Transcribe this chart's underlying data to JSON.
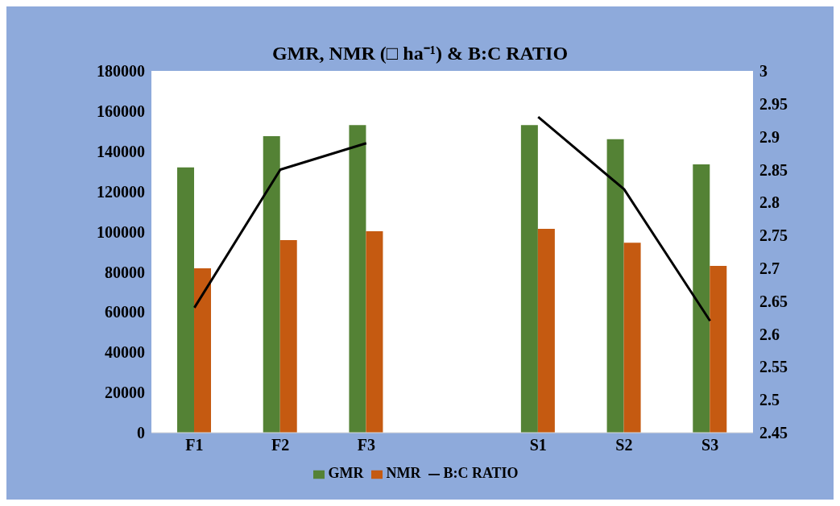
{
  "chart_data": {
    "type": "bar",
    "title": "GMR, NMR (□ ha⁻¹) & B:C RATIO",
    "categories": [
      "F1",
      "F2",
      "F3",
      null,
      "S1",
      "S2",
      "S3"
    ],
    "series": [
      {
        "name": "GMR",
        "color": "#548235",
        "values": [
          132000,
          147500,
          153000,
          null,
          153000,
          146000,
          133500
        ]
      },
      {
        "name": "NMR",
        "color": "#c55a11",
        "values": [
          81800,
          95800,
          100200,
          null,
          101400,
          94500,
          83000
        ]
      },
      {
        "name": "B:C RATIO",
        "type": "line",
        "axis": "y2",
        "color": "#000000",
        "values": [
          2.64,
          2.85,
          2.89,
          null,
          2.93,
          2.82,
          2.62
        ]
      }
    ],
    "ylim": [
      0,
      180000
    ],
    "yticks": [
      0,
      20000,
      40000,
      60000,
      80000,
      100000,
      120000,
      140000,
      160000,
      180000
    ],
    "y2lim": [
      2.45,
      3
    ],
    "y2ticks": [
      2.45,
      2.5,
      2.55,
      2.6,
      2.65,
      2.7,
      2.75,
      2.8,
      2.85,
      2.9,
      2.95,
      3
    ],
    "legend": "bottom"
  }
}
